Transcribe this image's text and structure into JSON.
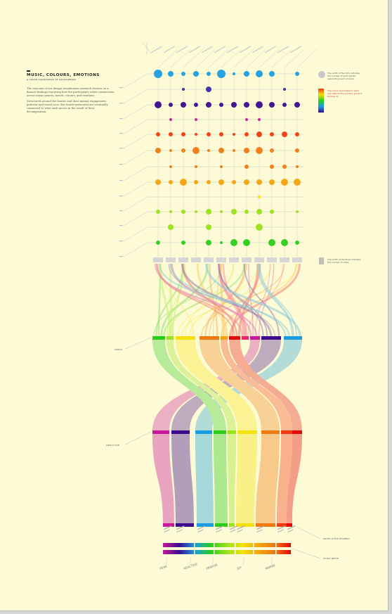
{
  "intro": {
    "title": "MUSIC, COLOURS, EMOTIONS",
    "subtitle": "a visual exploration of associations",
    "paragraphs": [
      "The outcome of our design visualisation research focuses on a dataset findings reporting how the participants relate connections across music genres, moods, colours, and emotions.",
      "Structured around the fourier and their mutual engagement patterns and visual cues, the results presented are eventually connected to what each moves in the result of their decomposition."
    ]
  },
  "notes": {
    "legend_size": "The width of the dots indicates the number of participants associating each emotion",
    "legend_color": "The colour associated to each row reflects the emotion group it belongs to",
    "legend_flow": "The width of the flows indicates the number of votes"
  },
  "labels": {
    "colour": "colour",
    "colour_hue": "colour hue",
    "emotion": "name of the emotion",
    "music": "music genre",
    "dominant": "dominant colour"
  },
  "bottom_labels": [
    "PEAK",
    "REACTIVE",
    "PASSIVE",
    "JOY",
    "AWARE"
  ],
  "colors": {
    "palette": [
      "#f5206a",
      "#3b0a8e",
      "#1a9de0",
      "#2bcc1a",
      "#9ae21c",
      "#f4e00a",
      "#f4a20f",
      "#ef7a12",
      "#f23a10",
      "#e40a0a",
      "#c8179a"
    ]
  }
}
